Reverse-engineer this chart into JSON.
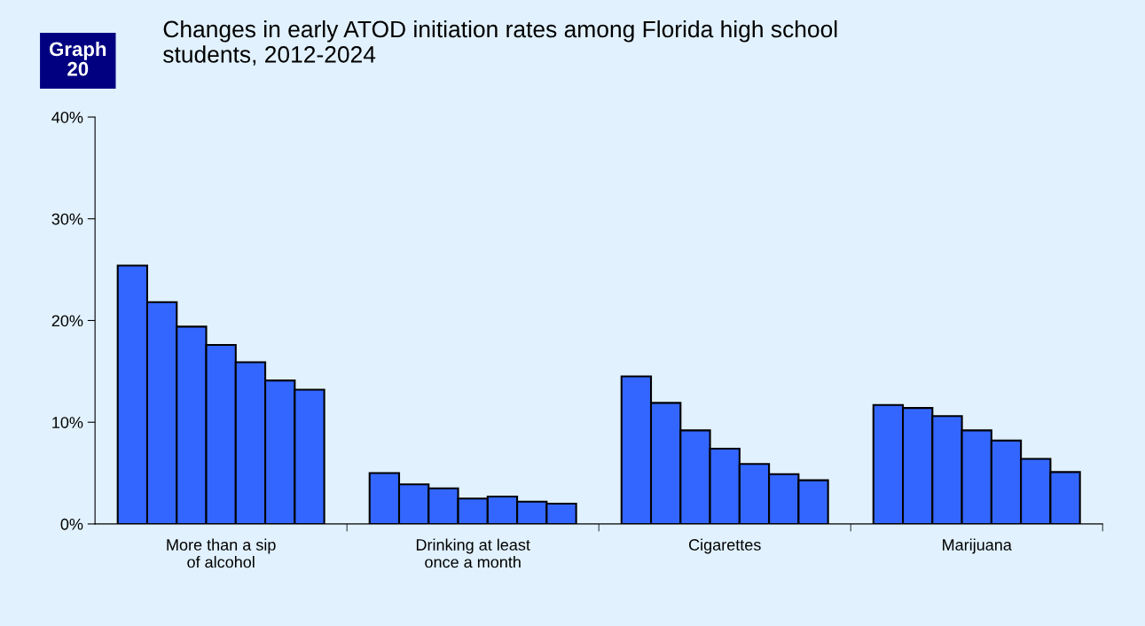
{
  "chart_data": {
    "type": "bar",
    "title": "Changes in early ATOD initiation rates among Florida high school\nstudents, 2012-2024",
    "annotations": [
      "Graph\n20"
    ],
    "categories": [
      "More than a sip\nof alcohol",
      "Drinking at least\nonce a month",
      "Cigarettes",
      "Marijuana"
    ],
    "series": [
      {
        "color": "#3366ff",
        "values": [
          25.4,
          5.0,
          14.5,
          11.7
        ]
      },
      {
        "color": "#3366ff",
        "values": [
          21.8,
          3.9,
          11.9,
          11.4
        ]
      },
      {
        "color": "#3366ff",
        "values": [
          19.4,
          3.5,
          9.2,
          10.6
        ]
      },
      {
        "color": "#3366ff",
        "values": [
          17.6,
          2.5,
          7.4,
          9.2
        ]
      },
      {
        "color": "#3366ff",
        "values": [
          15.9,
          2.7,
          5.9,
          8.2
        ]
      },
      {
        "color": "#3366ff",
        "values": [
          14.1,
          2.2,
          4.9,
          6.4
        ]
      },
      {
        "color": "#3366ff",
        "values": [
          13.2,
          2.0,
          4.3,
          5.1
        ]
      }
    ],
    "ylim": [
      0,
      40
    ],
    "yticks": [
      {
        "value": 0,
        "label": "0%"
      },
      {
        "value": 10,
        "label": "10%"
      },
      {
        "value": 20,
        "label": "20%"
      },
      {
        "value": 30,
        "label": "30%"
      },
      {
        "value": 40,
        "label": "40%"
      }
    ],
    "grid": false
  }
}
